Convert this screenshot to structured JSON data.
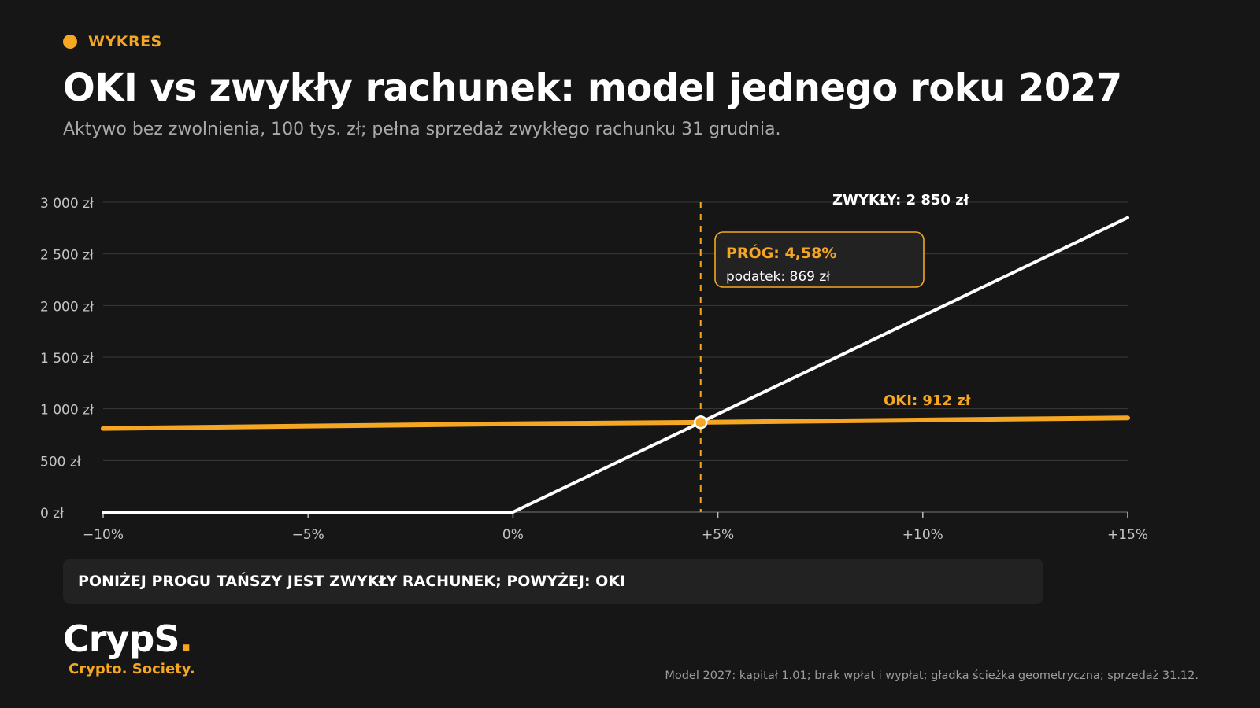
{
  "header": {
    "eyebrow": "WYKRES",
    "title": "OKI vs zwykły rachunek: model jednego roku 2027",
    "subtitle": "Aktywo bez zwolnienia, 100 tys. zł; pełna sprzedaż zwykłego rachunku 31 grudnia."
  },
  "chart_data": {
    "type": "line",
    "title": "OKI vs zwykły rachunek: model jednego roku 2027",
    "xlabel": "",
    "ylabel": "",
    "xlim": [
      -10,
      15
    ],
    "ylim": [
      0,
      3000
    ],
    "grid": true,
    "x_ticks": [
      -10,
      -5,
      0,
      5,
      10,
      15
    ],
    "x_tick_labels": [
      "−10%",
      "−5%",
      "0%",
      "+5%",
      "+10%",
      "+15%"
    ],
    "y_ticks": [
      0,
      500,
      1000,
      1500,
      2000,
      2500,
      3000
    ],
    "y_tick_labels": [
      "0 zł",
      "500 zł",
      "1 000 zł",
      "1 500 zł",
      "2 000 zł",
      "2 500 zł",
      "3 000 zł"
    ],
    "series": [
      {
        "name": "OKI",
        "color": "#f5a623",
        "x": [
          -10,
          0,
          4.58,
          15
        ],
        "y": [
          810,
          855,
          869,
          912
        ],
        "end_label": "OKI: 912 zł"
      },
      {
        "name": "ZWYKŁY",
        "color": "#ffffff",
        "x": [
          -10,
          0,
          4.58,
          15
        ],
        "y": [
          0,
          0,
          869,
          2850
        ],
        "end_label": "ZWYKŁY: 2 850 zł"
      }
    ],
    "threshold": {
      "x": 4.58,
      "y": 869,
      "color": "#f5a623",
      "label_title": "PRÓG: 4,58%",
      "label_detail": "podatek: 869 zł"
    }
  },
  "banner": {
    "text": "PONIŻEJ PROGU TAŃSZY JEST ZWYKŁY RACHUNEK; POWYŻEJ: OKI"
  },
  "logo": {
    "name_main": "CrypS",
    "name_accent": ".",
    "tagline": "Crypto. Society."
  },
  "footnote": "Model 2027: kapitał 1.01; brak wpłat i wypłat; gładka ścieżka geometryczna; sprzedaż 31.12.",
  "colors": {
    "background": "#161616",
    "accent": "#f5a623",
    "text": "#ffffff",
    "muted": "#a9a9a9",
    "grid": "#3a3a3a"
  }
}
